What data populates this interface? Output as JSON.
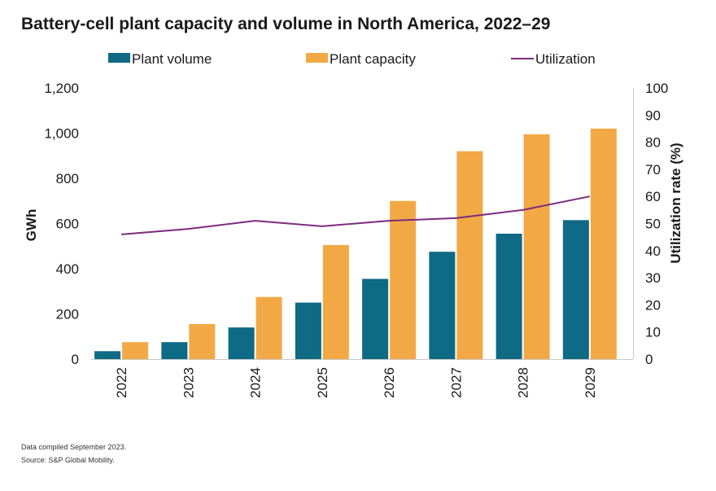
{
  "chart_data": {
    "type": "bar",
    "title": "Battery-cell plant capacity and volume in North America, 2022–29",
    "categories": [
      "2022",
      "2023",
      "2024",
      "2025",
      "2026",
      "2027",
      "2028",
      "2029"
    ],
    "series": [
      {
        "name": "Plant volume",
        "type": "bar",
        "axis": "left",
        "color": "#0e6a85",
        "values": [
          35,
          75,
          140,
          250,
          355,
          475,
          555,
          615
        ]
      },
      {
        "name": "Plant capacity",
        "type": "bar",
        "axis": "left",
        "color": "#f2a945",
        "values": [
          75,
          155,
          275,
          505,
          700,
          920,
          995,
          1020
        ]
      },
      {
        "name": "Utilization",
        "type": "line",
        "axis": "right",
        "color": "#7b2b7e",
        "values": [
          46,
          48,
          51,
          49,
          51,
          52,
          55,
          60
        ]
      }
    ],
    "ylabel": "GWh",
    "ylim": [
      0,
      1200
    ],
    "yticks": [
      "0",
      "200",
      "400",
      "600",
      "800",
      "1,000",
      "1,200"
    ],
    "ytick_values": [
      0,
      200,
      400,
      600,
      800,
      1000,
      1200
    ],
    "y2label": "Utilization rate (%)",
    "y2lim": [
      0,
      100
    ],
    "y2ticks": [
      "0",
      "10",
      "20",
      "30",
      "40",
      "50",
      "60",
      "70",
      "80",
      "90",
      "100"
    ],
    "y2tick_values": [
      0,
      10,
      20,
      30,
      40,
      50,
      60,
      70,
      80,
      90,
      100
    ],
    "legend_position": "top",
    "grid": false
  },
  "notes": {
    "line1": "Data compiled September 2023.",
    "line2": "Source: S&P Global Mobility."
  }
}
